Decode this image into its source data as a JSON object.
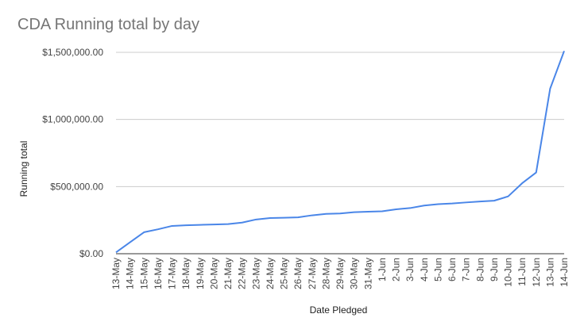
{
  "chart_data": {
    "type": "line",
    "title": "CDA Running total by day",
    "xlabel": "Date Pledged",
    "ylabel": "Running total",
    "ylim": [
      0,
      1500000
    ],
    "yticks": [
      0,
      500000,
      1000000,
      1500000
    ],
    "ytick_labels": [
      "$0.00",
      "$500,000.00",
      "$1,000,000.00",
      "$1,500,000.00"
    ],
    "grid": true,
    "legend": "none",
    "line_color": "#4a86e8",
    "categories": [
      "13-May",
      "14-May",
      "15-May",
      "16-May",
      "17-May",
      "18-May",
      "19-May",
      "20-May",
      "21-May",
      "22-May",
      "23-May",
      "24-May",
      "25-May",
      "26-May",
      "27-May",
      "28-May",
      "29-May",
      "30-May",
      "31-May",
      "1-Jun",
      "2-Jun",
      "3-Jun",
      "4-Jun",
      "5-Jun",
      "6-Jun",
      "7-Jun",
      "8-Jun",
      "9-Jun",
      "10-Jun",
      "11-Jun",
      "12-Jun",
      "13-Jun",
      "14-Jun"
    ],
    "series": [
      {
        "values": [
          10000,
          85000,
          160000,
          182000,
          207000,
          212000,
          215000,
          218000,
          221000,
          232000,
          255000,
          266000,
          268000,
          271000,
          286000,
          297000,
          300000,
          309000,
          313000,
          316000,
          331000,
          340000,
          359000,
          369000,
          374000,
          382000,
          389000,
          395000,
          427000,
          525000,
          605000,
          1230000,
          1510000
        ]
      }
    ]
  }
}
